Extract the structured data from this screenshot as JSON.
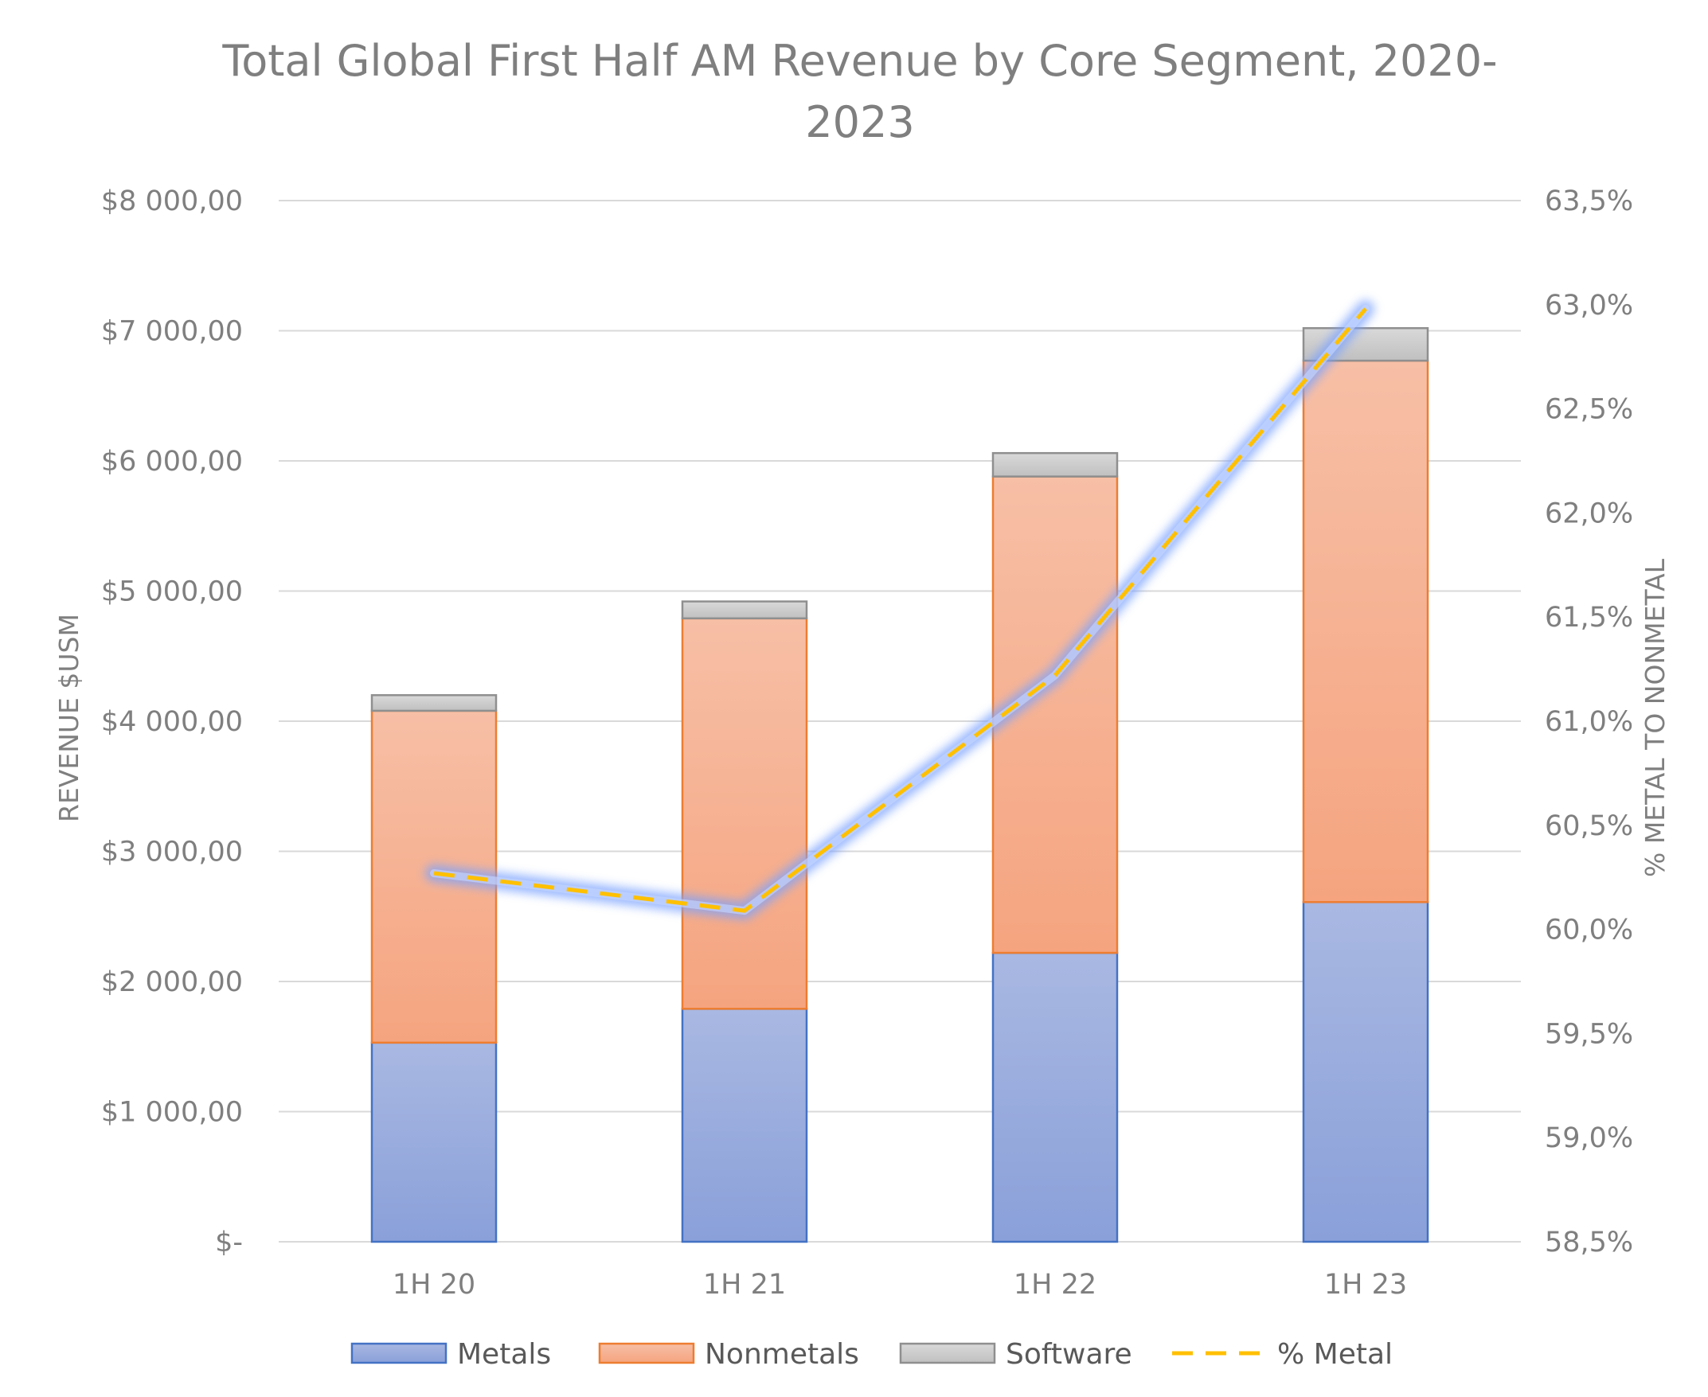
{
  "chart_data": {
    "type": "bar",
    "stacked": true,
    "title_lines": [
      "Total Global First Half AM Revenue by Core Segment, 2020-",
      "2023"
    ],
    "categories": [
      "1H 20",
      "1H 21",
      "1H 22",
      "1H 23"
    ],
    "series": [
      {
        "name": "Metals",
        "type": "bar",
        "axis": "left",
        "values": [
          1530,
          1790,
          2220,
          2610
        ],
        "color": "#8ea4dc",
        "stroke": "#4472c4"
      },
      {
        "name": "Nonmetals",
        "type": "bar",
        "axis": "left",
        "values": [
          2550,
          3000,
          3660,
          4160
        ],
        "color": "#f5a988",
        "stroke": "#ed7d31"
      },
      {
        "name": "Software",
        "type": "bar",
        "axis": "left",
        "values": [
          120,
          130,
          180,
          250
        ],
        "color": "#c8c8c8",
        "stroke": "#8f8f8f"
      },
      {
        "name": "% Metal",
        "type": "line",
        "axis": "right",
        "values": [
          60.27,
          60.09,
          61.22,
          62.98
        ],
        "color": "#ffc000"
      }
    ],
    "ylabel": "REVENUE $USM",
    "y2label": "% METAL TO NONMETAL",
    "ylim": [
      0,
      8000
    ],
    "y2lim": [
      58.5,
      63.5
    ],
    "y_ticks": [
      {
        "value": 0,
        "label": "$-"
      },
      {
        "value": 1000,
        "label": "$1 000,00"
      },
      {
        "value": 2000,
        "label": "$2 000,00"
      },
      {
        "value": 3000,
        "label": "$3 000,00"
      },
      {
        "value": 4000,
        "label": "$4 000,00"
      },
      {
        "value": 5000,
        "label": "$5 000,00"
      },
      {
        "value": 6000,
        "label": "$6 000,00"
      },
      {
        "value": 7000,
        "label": "$7 000,00"
      },
      {
        "value": 8000,
        "label": "$8 000,00"
      }
    ],
    "y2_ticks": [
      {
        "value": 58.5,
        "label": "58,5%"
      },
      {
        "value": 59.0,
        "label": "59,0%"
      },
      {
        "value": 59.5,
        "label": "59,5%"
      },
      {
        "value": 60.0,
        "label": "60,0%"
      },
      {
        "value": 60.5,
        "label": "60,5%"
      },
      {
        "value": 61.0,
        "label": "61,0%"
      },
      {
        "value": 61.5,
        "label": "61,5%"
      },
      {
        "value": 62.0,
        "label": "62,0%"
      },
      {
        "value": 62.5,
        "label": "62,5%"
      },
      {
        "value": 63.0,
        "label": "63,0%"
      },
      {
        "value": 63.5,
        "label": "63,5%"
      }
    ],
    "grid": true,
    "legend_position": "bottom"
  }
}
